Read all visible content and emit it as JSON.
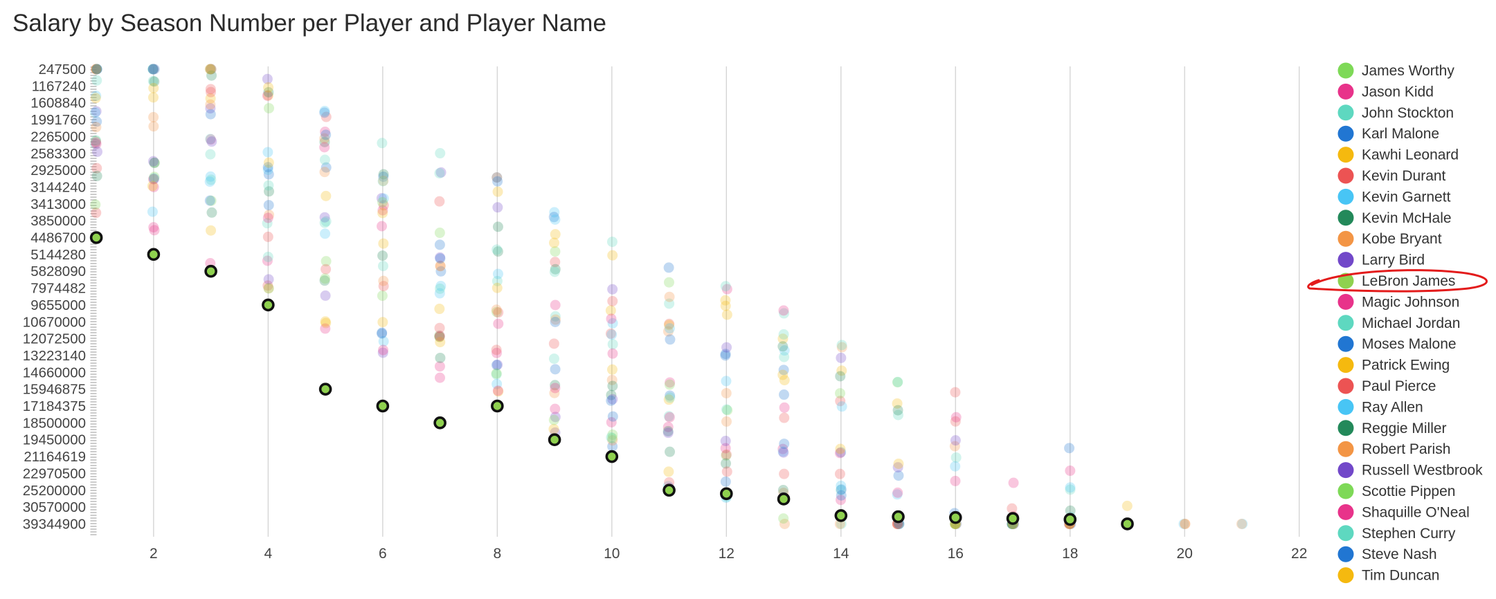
{
  "chart_data": {
    "type": "scatter",
    "title": "Salary by Season Number per Player and Player Name",
    "xlabel": "",
    "ylabel": "",
    "x_ticks": [
      "2",
      "4",
      "6",
      "8",
      "10",
      "12",
      "14",
      "16",
      "18",
      "20",
      "22"
    ],
    "y_ticks": [
      "247500",
      "1167240",
      "1608840",
      "1991760",
      "2265000",
      "2583300",
      "2925000",
      "3144240",
      "3413000",
      "3850000",
      "4486700",
      "5144280",
      "5828090",
      "7974482",
      "9655000",
      "10670000",
      "12072500",
      "13223140",
      "14660000",
      "15946875",
      "17184375",
      "18500000",
      "19450000",
      "21164619",
      "22970500",
      "25200000",
      "30570000",
      "39344900"
    ],
    "legend_position": "right",
    "grid": "vertical",
    "highlight_series": "LeBron James",
    "series": [
      {
        "name": "James Worthy",
        "color": "#7ed957"
      },
      {
        "name": "Jason Kidd",
        "color": "#e8338a"
      },
      {
        "name": "John Stockton",
        "color": "#5ed8c0"
      },
      {
        "name": "Karl Malone",
        "color": "#2176d2"
      },
      {
        "name": "Kawhi Leonard",
        "color": "#f5b90f"
      },
      {
        "name": "Kevin Durant",
        "color": "#ec5353"
      },
      {
        "name": "Kevin Garnett",
        "color": "#48c5f5"
      },
      {
        "name": "Kevin McHale",
        "color": "#23895a"
      },
      {
        "name": "Kobe Bryant",
        "color": "#f39545"
      },
      {
        "name": "Larry Bird",
        "color": "#7248c9"
      },
      {
        "name": "LeBron James",
        "color": "#8fd14f",
        "points": [
          [
            1,
            "4486700"
          ],
          [
            2,
            "5144280"
          ],
          [
            3,
            "5828090"
          ],
          [
            4,
            "9655000"
          ],
          [
            5,
            "15946875"
          ],
          [
            6,
            "17184375"
          ],
          [
            7,
            "18500000"
          ],
          [
            8,
            "17184375"
          ],
          [
            9,
            "19450000"
          ],
          [
            10,
            "21164619"
          ],
          [
            11,
            "25200000"
          ],
          [
            12,
            "26300000"
          ],
          [
            13,
            "28000000"
          ],
          [
            14,
            "35000000"
          ],
          [
            15,
            "35600000"
          ],
          [
            16,
            "36000000"
          ],
          [
            17,
            "36500000"
          ],
          [
            18,
            "37000000"
          ],
          [
            19,
            "39344900"
          ]
        ]
      },
      {
        "name": "Magic Johnson",
        "color": "#e8338a"
      },
      {
        "name": "Michael Jordan",
        "color": "#5ed8c0"
      },
      {
        "name": "Moses Malone",
        "color": "#2176d2"
      },
      {
        "name": "Patrick Ewing",
        "color": "#f5b90f"
      },
      {
        "name": "Paul Pierce",
        "color": "#ec5353"
      },
      {
        "name": "Ray Allen",
        "color": "#48c5f5"
      },
      {
        "name": "Reggie Miller",
        "color": "#23895a"
      },
      {
        "name": "Robert Parish",
        "color": "#f39545"
      },
      {
        "name": "Russell Westbrook",
        "color": "#7248c9"
      },
      {
        "name": "Scottie Pippen",
        "color": "#7ed957"
      },
      {
        "name": "Shaquille O'Neal",
        "color": "#e8338a"
      },
      {
        "name": "Stephen Curry",
        "color": "#5ed8c0"
      },
      {
        "name": "Steve Nash",
        "color": "#2176d2"
      },
      {
        "name": "Tim Duncan",
        "color": "#f5b90f"
      }
    ]
  }
}
